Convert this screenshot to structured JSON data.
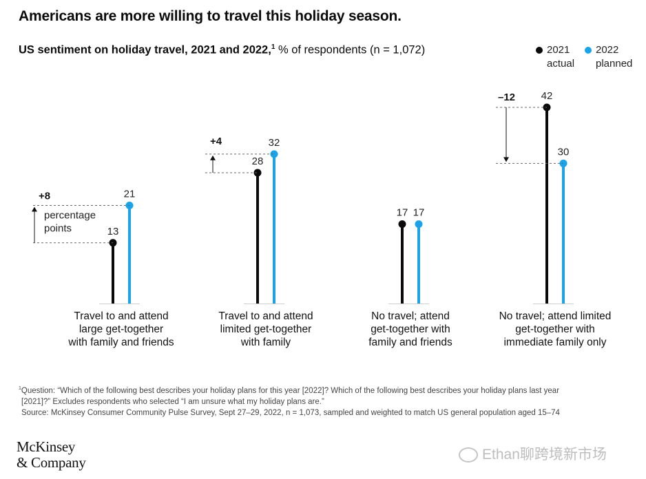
{
  "title": "Americans are more willing to travel this holiday season.",
  "subtitle_bold": "US sentiment on holiday travel, 2021 and 2022,",
  "subtitle_sup": "1",
  "subtitle_rest": " % of respondents (n = 1,072)",
  "legend": [
    {
      "line1": "2021",
      "line2": "actual",
      "color": "#0a0a0a"
    },
    {
      "line1": "2022",
      "line2": "planned",
      "color": "#1aa3e8"
    }
  ],
  "chart_data": {
    "type": "lollipop",
    "categories": [
      {
        "lines": [
          "Travel to and attend",
          "large get-together",
          "with family and friends"
        ]
      },
      {
        "lines": [
          "Travel to and attend",
          "limited get-together",
          "with family"
        ]
      },
      {
        "lines": [
          "No travel; attend",
          "get-together with",
          "family and friends"
        ]
      },
      {
        "lines": [
          "No travel; attend limited",
          "get-together with",
          "immediate family only"
        ]
      }
    ],
    "series": [
      {
        "name": "2021 actual",
        "color": "#0a0a0a",
        "values": [
          13,
          28,
          17,
          42
        ]
      },
      {
        "name": "2022 planned",
        "color": "#1aa3e8",
        "values": [
          21,
          32,
          17,
          30
        ]
      }
    ],
    "changes": [
      "+8",
      "+4",
      "",
      "–12"
    ],
    "change_unit": [
      "percentage",
      "points"
    ],
    "ylim": [
      0,
      42
    ]
  },
  "footnote": {
    "sup": "1",
    "line1": "Question: “Which of the following best describes your holiday plans for this year [2022]? Which of the following best describes your holiday plans last year",
    "line2": "[2021]?” Excludes respondents who selected “I am unsure what my holiday plans are.”",
    "line3": "Source: McKinsey Consumer Community Pulse Survey, Sept 27–29, 2022, n = 1,073, sampled and weighted to match US general population aged 15–74"
  },
  "logo": {
    "line1": "McKinsey",
    "line2": "& Company"
  },
  "watermark": "Ethan聊跨境新市场"
}
